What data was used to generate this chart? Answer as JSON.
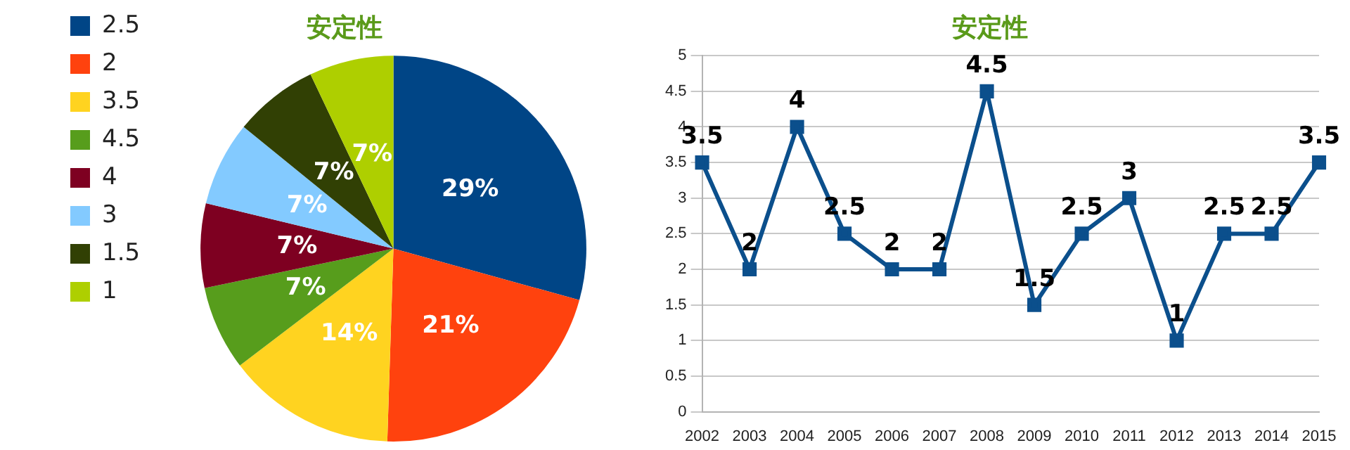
{
  "chart_data": [
    {
      "type": "pie",
      "title": "安定性",
      "categories": [
        "2.5",
        "2",
        "3.5",
        "4.5",
        "4",
        "3",
        "1.5",
        "1"
      ],
      "values": [
        29,
        21,
        14,
        7,
        7,
        7,
        7,
        7
      ],
      "colors": [
        "#004586",
        "#ff420e",
        "#ffd320",
        "#579d1c",
        "#7e0021",
        "#83caff",
        "#314004",
        "#aecf00"
      ],
      "value_labels": [
        "29%",
        "21%",
        "14%",
        "7%",
        "7%",
        "7%",
        "7%",
        "7%"
      ],
      "legend": "left"
    },
    {
      "type": "line",
      "title": "安定性",
      "categories": [
        "2002",
        "2003",
        "2004",
        "2005",
        "2006",
        "2007",
        "2008",
        "2009",
        "2010",
        "2011",
        "2012",
        "2013",
        "2014",
        "2015"
      ],
      "series": [
        {
          "color": "#0b4f8c",
          "values": [
            3.5,
            2,
            4,
            2.5,
            2,
            2,
            4.5,
            1.5,
            2.5,
            3,
            1,
            2.5,
            2.5,
            3.5
          ]
        }
      ],
      "ylim": [
        0,
        5
      ],
      "yticks": [
        0,
        0.5,
        1,
        1.5,
        2,
        2.5,
        3,
        3.5,
        4,
        4.5,
        5
      ],
      "grid": "y",
      "marker": "square",
      "line_style": "solid",
      "data_labels": true,
      "legend": false
    }
  ]
}
